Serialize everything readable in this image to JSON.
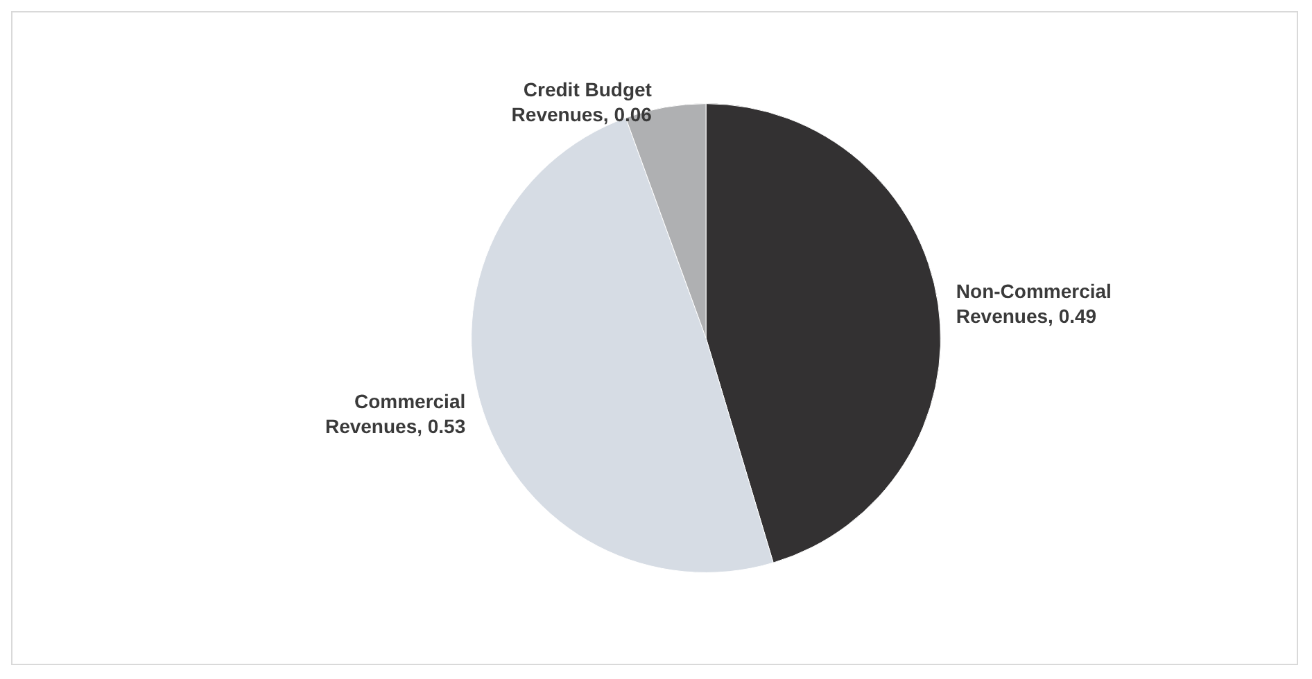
{
  "chart_data": {
    "type": "pie",
    "categories": [
      "Non-Commercial Revenues",
      "Commercial Revenues",
      "Credit Budget Revenues"
    ],
    "values": [
      0.49,
      0.53,
      0.06
    ],
    "colors": [
      "#333132",
      "#d6dce4",
      "#afb0b2"
    ],
    "value_labels": [
      ", 0.49",
      ", 0.53",
      ", 0.06"
    ],
    "legend": false
  }
}
